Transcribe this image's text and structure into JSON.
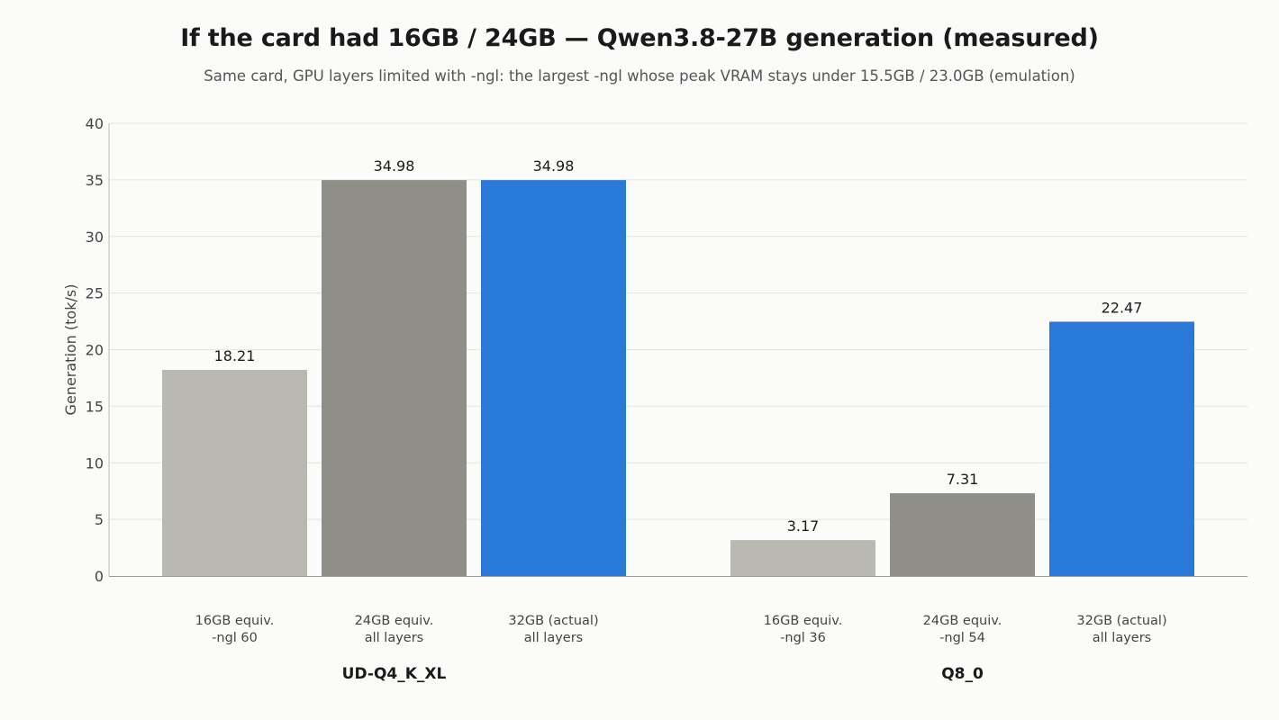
{
  "chart_data": {
    "type": "bar",
    "title": "If the card had 16GB / 24GB — Qwen3.8-27B generation (measured)",
    "subtitle": "Same card, GPU layers limited with -ngl: the largest -ngl whose peak VRAM stays under 15.5GB / 23.0GB (emulation)",
    "ylabel": "Generation (tok/s)",
    "xlabel": "",
    "ylim": [
      0,
      40
    ],
    "yticks": [
      0,
      5,
      10,
      15,
      20,
      25,
      30,
      35,
      40
    ],
    "grid": true,
    "groups": [
      {
        "name": "UD-Q4_K_XL",
        "bars": [
          {
            "label": [
              "16GB equiv.",
              "-ngl 60"
            ],
            "value": 18.21,
            "value_label": "18.21",
            "color": "#b9b8b3"
          },
          {
            "label": [
              "24GB equiv.",
              "all layers"
            ],
            "value": 34.98,
            "value_label": "34.98",
            "color": "#8f8e89"
          },
          {
            "label": [
              "32GB (actual)",
              "all layers"
            ],
            "value": 34.98,
            "value_label": "34.98",
            "color": "#2979d8"
          }
        ]
      },
      {
        "name": "Q8_0",
        "bars": [
          {
            "label": [
              "16GB equiv.",
              "-ngl 36"
            ],
            "value": 3.17,
            "value_label": "3.17",
            "color": "#b9b8b3"
          },
          {
            "label": [
              "24GB equiv.",
              "-ngl 54"
            ],
            "value": 7.31,
            "value_label": "7.31",
            "color": "#8f8e89"
          },
          {
            "label": [
              "32GB (actual)",
              "all layers"
            ],
            "value": 22.47,
            "value_label": "22.47",
            "color": "#2979d8"
          }
        ]
      }
    ]
  }
}
